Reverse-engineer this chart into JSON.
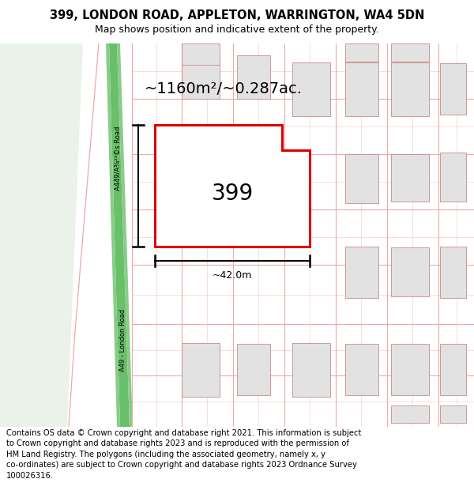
{
  "title_line1": "399, LONDON ROAD, APPLETON, WARRINGTON, WA4 5DN",
  "title_line2": "Map shows position and indicative extent of the property.",
  "area_label": "~1160m²/~0.287ac.",
  "property_number": "399",
  "width_label": "~42.0m",
  "road_label_upper": "A449/A¾²³©s Road",
  "road_label_lower": "A49 - London Road",
  "footer_text": "Contains OS data © Crown copyright and database right 2021. This information is subject\nto Crown copyright and database rights 2023 and is reproduced with the permission of\nHM Land Registry. The polygons (including the associated geometry, namely x, y\nco-ordinates) are subject to Crown copyright and database rights 2023 Ordnance Survey\n100026316.",
  "bg_left_color": "#eaf2ea",
  "road_green_color": "#6abf6a",
  "road_green_edge": "#88cc88",
  "grid_line_color": "#f0a8a8",
  "building_fill": "#e2e2e2",
  "building_outline": "#cc8888",
  "property_outline": "#dd0000",
  "property_fill": "#ffffff",
  "title_fontsize": 10.5,
  "subtitle_fontsize": 9.0,
  "footer_fontsize": 7.2,
  "area_fontsize": 14.0,
  "number_fontsize": 20.0
}
